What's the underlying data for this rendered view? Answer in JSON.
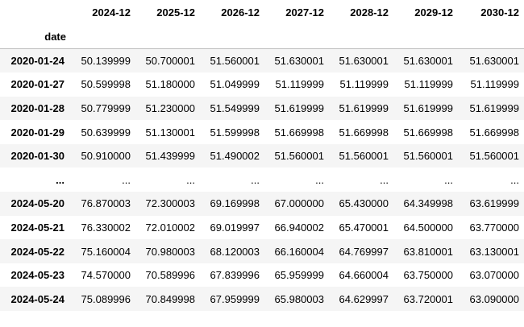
{
  "table": {
    "index_name": "date",
    "columns": [
      "2024-12",
      "2025-12",
      "2026-12",
      "2027-12",
      "2028-12",
      "2029-12",
      "2030-12"
    ],
    "rows": [
      {
        "date": "2020-01-24",
        "values": [
          "50.139999",
          "50.700001",
          "51.560001",
          "51.630001",
          "51.630001",
          "51.630001",
          "51.630001"
        ]
      },
      {
        "date": "2020-01-27",
        "values": [
          "50.599998",
          "51.180000",
          "51.049999",
          "51.119999",
          "51.119999",
          "51.119999",
          "51.119999"
        ]
      },
      {
        "date": "2020-01-28",
        "values": [
          "50.779999",
          "51.230000",
          "51.549999",
          "51.619999",
          "51.619999",
          "51.619999",
          "51.619999"
        ]
      },
      {
        "date": "2020-01-29",
        "values": [
          "50.639999",
          "51.130001",
          "51.599998",
          "51.669998",
          "51.669998",
          "51.669998",
          "51.669998"
        ]
      },
      {
        "date": "2020-01-30",
        "values": [
          "50.910000",
          "51.439999",
          "51.490002",
          "51.560001",
          "51.560001",
          "51.560001",
          "51.560001"
        ]
      },
      {
        "date": "...",
        "values": [
          "...",
          "...",
          "...",
          "...",
          "...",
          "...",
          "..."
        ]
      },
      {
        "date": "2024-05-20",
        "values": [
          "76.870003",
          "72.300003",
          "69.169998",
          "67.000000",
          "65.430000",
          "64.349998",
          "63.619999"
        ]
      },
      {
        "date": "2024-05-21",
        "values": [
          "76.330002",
          "72.010002",
          "69.019997",
          "66.940002",
          "65.470001",
          "64.500000",
          "63.770000"
        ]
      },
      {
        "date": "2024-05-22",
        "values": [
          "75.160004",
          "70.980003",
          "68.120003",
          "66.160004",
          "64.769997",
          "63.810001",
          "63.130001"
        ]
      },
      {
        "date": "2024-05-23",
        "values": [
          "74.570000",
          "70.589996",
          "67.839996",
          "65.959999",
          "64.660004",
          "63.750000",
          "63.070000"
        ]
      },
      {
        "date": "2024-05-24",
        "values": [
          "75.089996",
          "70.849998",
          "67.959999",
          "65.980003",
          "64.629997",
          "63.720001",
          "63.090000"
        ]
      }
    ]
  }
}
